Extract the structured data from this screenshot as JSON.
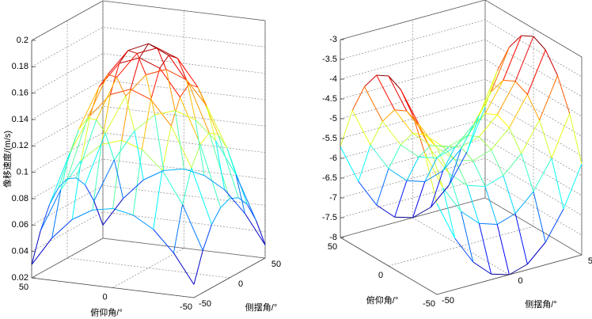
{
  "chart_data": [
    {
      "type": "mesh",
      "colormap": "jet",
      "grid": true,
      "xlabel": "俯仰角/°",
      "ylabel": "侧摆角/°",
      "zlabel": "像移速度/(m/s)",
      "x": [
        -50,
        -37.5,
        -25,
        -12.5,
        0,
        12.5,
        25,
        37.5,
        50
      ],
      "y": [
        -50,
        -37.5,
        -25,
        -12.5,
        0,
        12.5,
        25,
        37.5,
        50
      ],
      "z": [
        [
          0.03,
          0.052,
          0.068,
          0.077,
          0.08,
          0.077,
          0.068,
          0.052,
          0.03
        ],
        [
          0.052,
          0.085,
          0.109,
          0.123,
          0.128,
          0.123,
          0.109,
          0.085,
          0.052
        ],
        [
          0.068,
          0.109,
          0.139,
          0.157,
          0.163,
          0.157,
          0.139,
          0.109,
          0.068
        ],
        [
          0.077,
          0.123,
          0.157,
          0.177,
          0.183,
          0.177,
          0.157,
          0.123,
          0.077
        ],
        [
          0.08,
          0.128,
          0.163,
          0.183,
          0.19,
          0.183,
          0.163,
          0.128,
          0.08
        ],
        [
          0.077,
          0.123,
          0.157,
          0.177,
          0.183,
          0.177,
          0.157,
          0.123,
          0.077
        ],
        [
          0.068,
          0.109,
          0.139,
          0.157,
          0.163,
          0.157,
          0.139,
          0.109,
          0.068
        ],
        [
          0.052,
          0.085,
          0.109,
          0.123,
          0.128,
          0.123,
          0.109,
          0.085,
          0.052
        ],
        [
          0.03,
          0.052,
          0.068,
          0.077,
          0.08,
          0.077,
          0.068,
          0.052,
          0.03
        ]
      ],
      "xlim": [
        -50,
        50
      ],
      "ylim": [
        -50,
        50
      ],
      "zlim": [
        0.02,
        0.2
      ],
      "xticks": [
        -50,
        0,
        50
      ],
      "yticks": [
        -50,
        0,
        50
      ],
      "zticks": [
        0.02,
        0.04,
        0.06,
        0.08,
        0.1,
        0.12,
        0.14,
        0.16,
        0.18,
        0.2
      ]
    },
    {
      "type": "mesh",
      "colormap": "jet",
      "grid": true,
      "xlabel": "俯仰角/°",
      "ylabel": "侧摆角/°",
      "x": [
        -50,
        -37.5,
        -25,
        -12.5,
        0,
        12.5,
        25,
        37.5,
        50
      ],
      "y": [
        -50,
        -37.5,
        -25,
        -12.5,
        0,
        12.5,
        25,
        37.5,
        50
      ],
      "z": [
        [
          -5.7,
          -4.61,
          -3.83,
          -3.36,
          -3.2,
          -3.36,
          -3.83,
          -4.61,
          -5.7
        ],
        [
          -6.71,
          -5.61,
          -4.83,
          -4.36,
          -4.21,
          -4.36,
          -4.83,
          -5.61,
          -6.71
        ],
        [
          -7.43,
          -6.33,
          -5.55,
          -5.08,
          -4.93,
          -5.08,
          -5.55,
          -6.33,
          -7.43
        ],
        [
          -7.86,
          -6.76,
          -5.98,
          -5.51,
          -5.36,
          -5.51,
          -5.98,
          -6.76,
          -7.86
        ],
        [
          -8,
          -6.91,
          -6.13,
          -5.66,
          -5.5,
          -5.66,
          -6.13,
          -6.91,
          -8
        ],
        [
          -7.86,
          -6.76,
          -5.98,
          -5.51,
          -5.36,
          -5.51,
          -5.98,
          -6.76,
          -7.86
        ],
        [
          -7.43,
          -6.33,
          -5.55,
          -5.08,
          -4.93,
          -5.08,
          -5.55,
          -6.33,
          -7.43
        ],
        [
          -6.71,
          -5.61,
          -4.83,
          -4.36,
          -4.21,
          -4.36,
          -4.83,
          -5.61,
          -6.71
        ],
        [
          -5.7,
          -4.61,
          -3.83,
          -3.36,
          -3.2,
          -3.36,
          -3.83,
          -4.61,
          -5.7
        ]
      ],
      "xlim": [
        -50,
        50
      ],
      "ylim": [
        -50,
        50
      ],
      "zlim": [
        -8,
        -3
      ],
      "xticks": [
        -50,
        0,
        50
      ],
      "yticks": [
        -50,
        0,
        50
      ],
      "zticks": [
        -8,
        -7.5,
        -7,
        -6.5,
        -6,
        -5.5,
        -5,
        -4.5,
        -4,
        -3.5,
        -3
      ]
    }
  ]
}
